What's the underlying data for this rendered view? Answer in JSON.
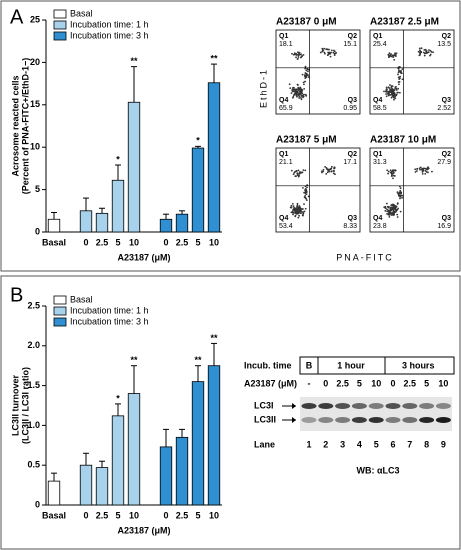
{
  "panel_labels": [
    "A",
    "B"
  ],
  "chart_data": [
    {
      "type": "bar",
      "ylabel": [
        "Acrosome reacted cells",
        "(Percent of PNA-FITC+/EthD-1−)"
      ],
      "xlabel": "A23187 (μM)",
      "categories": [
        "Basal",
        "0",
        "2.5",
        "5",
        "10",
        "0",
        "2.5",
        "5",
        "10"
      ],
      "ylim": [
        0,
        25
      ],
      "yticks": [
        0,
        5,
        10,
        15,
        20,
        25
      ],
      "series": [
        {
          "name": "Basal",
          "color": "#ffffff",
          "values": [
            1.5,
            null,
            null,
            null,
            null,
            null,
            null,
            null,
            null
          ],
          "errors": [
            0.8,
            null,
            null,
            null,
            null,
            null,
            null,
            null,
            null
          ],
          "significance": [
            null,
            null,
            null,
            null,
            null,
            null,
            null,
            null,
            null
          ]
        },
        {
          "name": "Incubation time: 1 h",
          "color": "#a8d1ec",
          "values": [
            null,
            2.5,
            2.2,
            6.1,
            15.3,
            null,
            null,
            null,
            null
          ],
          "errors": [
            null,
            1.5,
            0.6,
            1.8,
            4.2,
            null,
            null,
            null,
            null
          ],
          "significance": [
            null,
            null,
            null,
            "*",
            "**",
            null,
            null,
            null,
            null
          ]
        },
        {
          "name": "Incubation time: 3 h",
          "color": "#2f8fd0",
          "values": [
            null,
            null,
            null,
            null,
            null,
            1.5,
            2.1,
            9.9,
            17.6
          ],
          "errors": [
            null,
            null,
            null,
            null,
            null,
            0.6,
            0.4,
            0.2,
            2.2
          ],
          "significance": [
            null,
            null,
            null,
            null,
            null,
            null,
            null,
            "*",
            "**"
          ]
        }
      ]
    },
    {
      "type": "bar",
      "ylabel": [
        "LC3II turnover",
        "(LC3II / LC3I ratio)"
      ],
      "xlabel": "A23187 (μM)",
      "categories": [
        "Basal",
        "0",
        "2.5",
        "5",
        "10",
        "0",
        "2.5",
        "5",
        "10"
      ],
      "ylim": [
        0,
        2.5
      ],
      "yticks": [
        0,
        0.5,
        {
          "value": 1,
          "label": "1.0"
        },
        1.5,
        {
          "value": 2,
          "label": "2.0"
        },
        2.5
      ],
      "series": [
        {
          "name": "Basal",
          "color": "#ffffff",
          "values": [
            0.3,
            null,
            null,
            null,
            null,
            null,
            null,
            null,
            null
          ],
          "errors": [
            0.1,
            null,
            null,
            null,
            null,
            null,
            null,
            null,
            null
          ],
          "significance": [
            null,
            null,
            null,
            null,
            null,
            null,
            null,
            null,
            null
          ]
        },
        {
          "name": "Incubation time: 1 h",
          "color": "#a8d1ec",
          "values": [
            null,
            0.5,
            0.47,
            1.12,
            1.4,
            null,
            null,
            null,
            null
          ],
          "errors": [
            null,
            0.15,
            0.08,
            0.15,
            0.35,
            null,
            null,
            null,
            null
          ],
          "significance": [
            null,
            null,
            null,
            "*",
            "**",
            null,
            null,
            null,
            null
          ]
        },
        {
          "name": "Incubation time: 3 h",
          "color": "#2f8fd0",
          "values": [
            null,
            null,
            null,
            null,
            null,
            0.73,
            0.85,
            1.55,
            1.75
          ],
          "errors": [
            null,
            null,
            null,
            null,
            null,
            0.22,
            0.1,
            0.2,
            0.28
          ],
          "significance": [
            null,
            null,
            null,
            null,
            null,
            null,
            null,
            "**",
            "**"
          ]
        }
      ]
    }
  ],
  "flow": {
    "ylabel": "EthD-1",
    "xlabel": "PNA-FITC",
    "plots": [
      {
        "title": "A23187 0 μM",
        "quadrants": [
          {
            "label": "Q1",
            "value": 18.1
          },
          {
            "label": "Q2",
            "value": 15.1
          },
          {
            "label": "Q4",
            "value": 65.9
          },
          {
            "label": "Q3",
            "value": 0.95
          }
        ]
      },
      {
        "title": "A23187 2.5 μM",
        "quadrants": [
          {
            "label": "Q1",
            "value": 25.4
          },
          {
            "label": "Q2",
            "value": 13.5
          },
          {
            "label": "Q4",
            "value": 58.5
          },
          {
            "label": "Q3",
            "value": 2.52
          }
        ]
      },
      {
        "title": "A23187 5 μM",
        "quadrants": [
          {
            "label": "Q1",
            "value": 21.1
          },
          {
            "label": "Q2",
            "value": 17.1
          },
          {
            "label": "Q4",
            "value": 53.4
          },
          {
            "label": "Q3",
            "value": 8.33
          }
        ]
      },
      {
        "title": "A23187 10 μM",
        "quadrants": [
          {
            "label": "Q1",
            "value": 31.3
          },
          {
            "label": "Q2",
            "value": 27.9
          },
          {
            "label": "Q4",
            "value": 23.8
          },
          {
            "label": "Q3",
            "value": 16.9
          }
        ]
      }
    ]
  },
  "blot": {
    "incub_label": "Incub. time",
    "groups": [
      "B",
      "1 hour",
      "3 hours"
    ],
    "conc_label": "A23187 (μM)",
    "concs": [
      "-",
      "0",
      "2.5",
      "5",
      "10",
      "0",
      "2.5",
      "5",
      "10"
    ],
    "bands": [
      "LC3I",
      "LC3II"
    ],
    "lane_label": "Lane",
    "lanes": [
      "1",
      "2",
      "3",
      "4",
      "5",
      "6",
      "7",
      "8",
      "9"
    ],
    "caption": "WB: αLC3"
  }
}
